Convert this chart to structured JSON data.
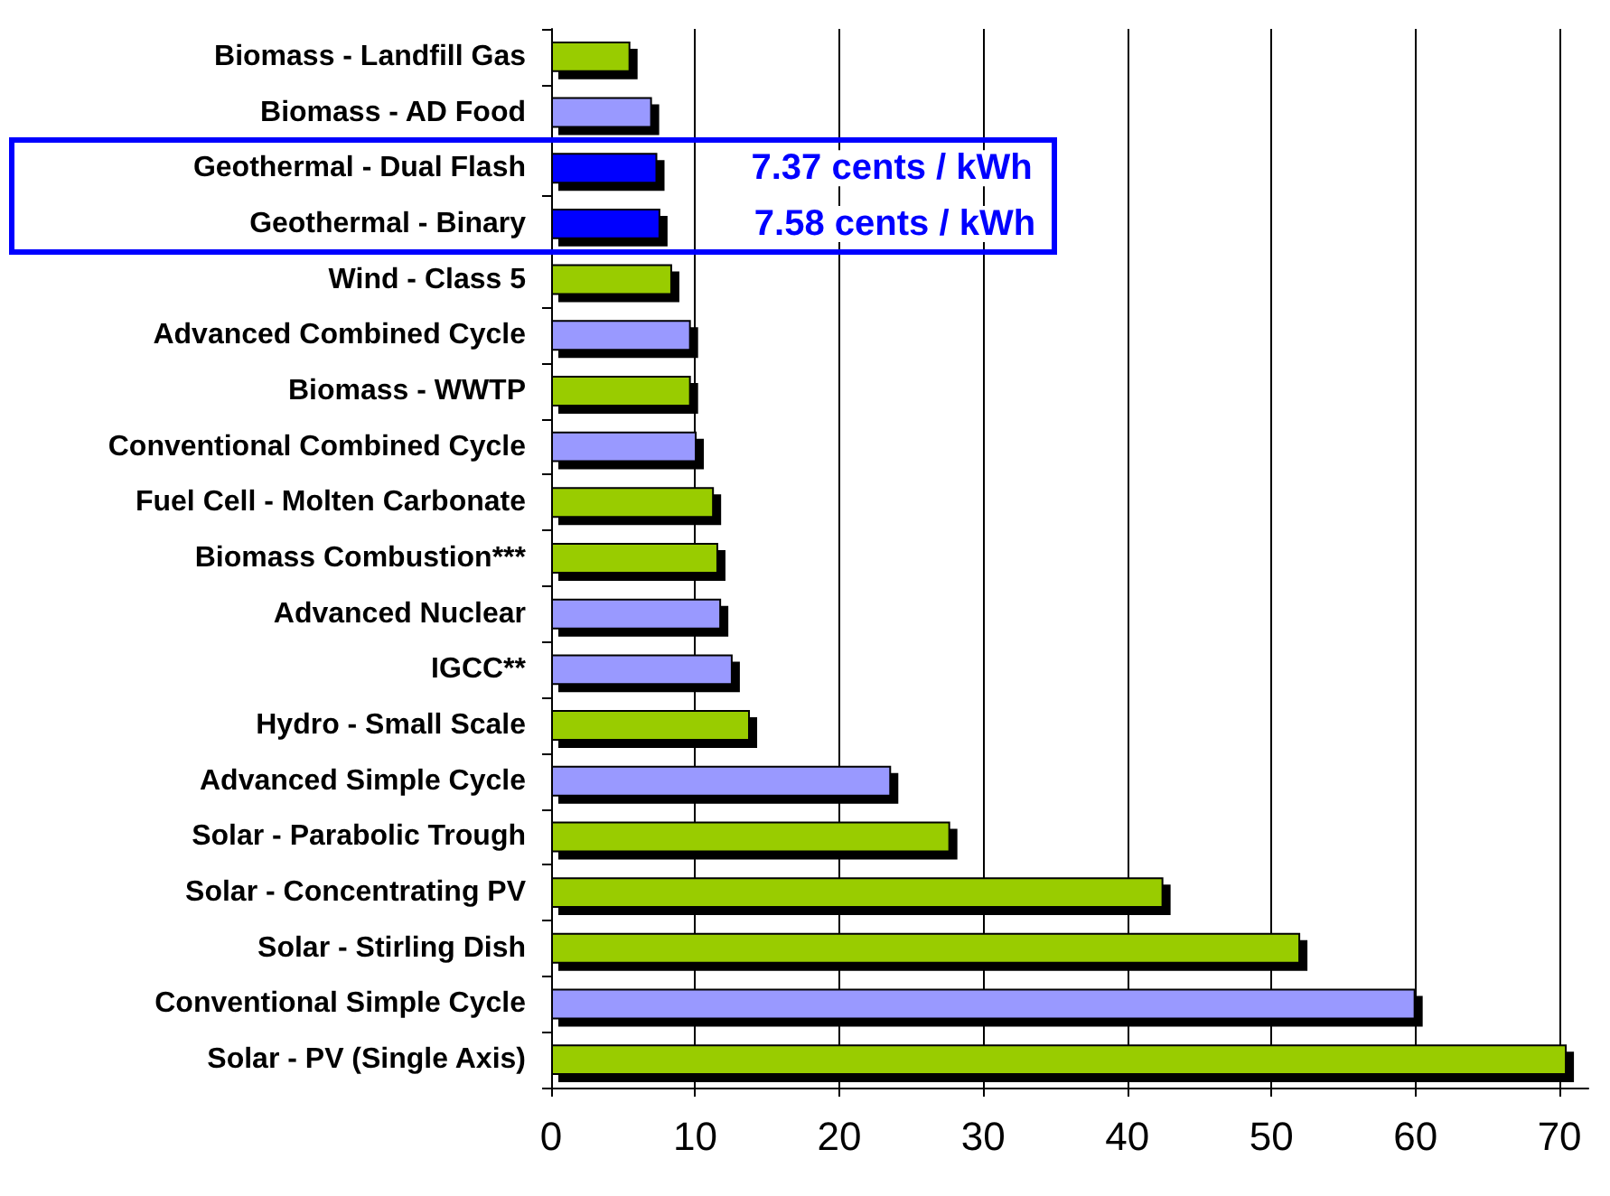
{
  "chart_data": {
    "type": "bar",
    "orientation": "horizontal",
    "categories": [
      "Biomass - Landfill Gas",
      "Biomass - AD Food",
      "Geothermal - Dual Flash",
      "Geothermal - Binary",
      "Wind - Class 5",
      "Advanced Combined Cycle",
      "Biomass - WWTP",
      "Conventional Combined Cycle",
      "Fuel Cell - Molten Carbonate",
      "Biomass Combustion***",
      "Advanced Nuclear",
      "IGCC**",
      "Hydro - Small Scale",
      "Advanced Simple Cycle",
      "Solar - Parabolic Trough",
      "Solar - Concentrating PV",
      "Solar - Stirling Dish",
      "Conventional Simple Cycle",
      "Solar - PV (Single Axis)"
    ],
    "values": [
      5.5,
      7.0,
      7.37,
      7.58,
      8.4,
      9.7,
      9.7,
      10.1,
      11.3,
      11.6,
      11.8,
      12.6,
      13.8,
      23.6,
      27.7,
      42.5,
      52.0,
      60.0,
      70.5
    ],
    "colors": [
      "#99cc00",
      "#9999ff",
      "#0000ff",
      "#0000ff",
      "#99cc00",
      "#9999ff",
      "#99cc00",
      "#9999ff",
      "#99cc00",
      "#99cc00",
      "#9999ff",
      "#9999ff",
      "#99cc00",
      "#9999ff",
      "#99cc00",
      "#99cc00",
      "#99cc00",
      "#9999ff",
      "#99cc00"
    ],
    "value_labels": [
      null,
      null,
      "7.37 cents / kWh",
      "7.58 cents / kWh",
      null,
      null,
      null,
      null,
      null,
      null,
      null,
      null,
      null,
      null,
      null,
      null,
      null,
      null,
      null
    ],
    "xlim": [
      0,
      72
    ],
    "xticks": [
      0,
      10,
      20,
      30,
      40,
      50,
      60,
      70
    ],
    "grid": "x"
  }
}
